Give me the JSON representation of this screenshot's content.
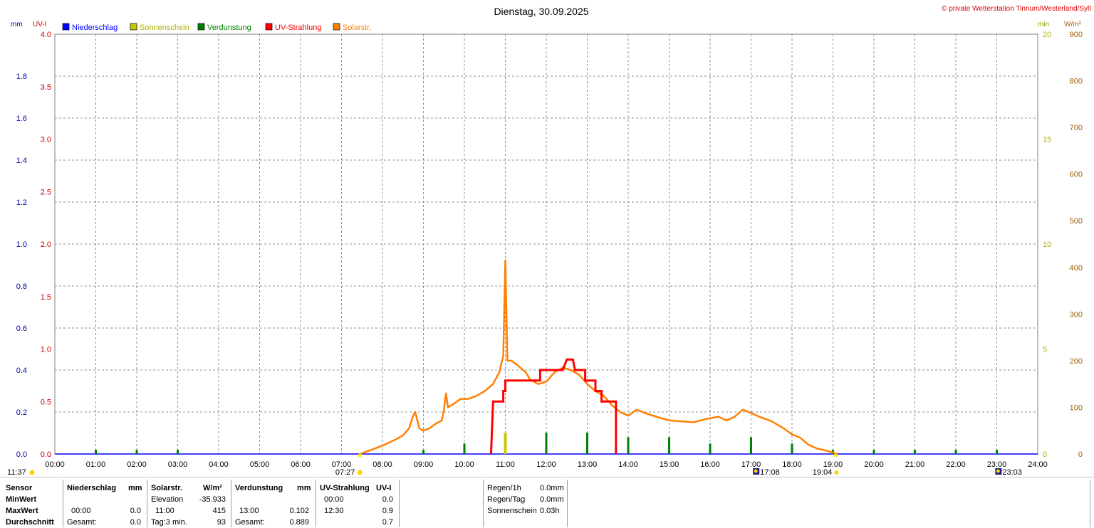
{
  "header": {
    "title": "Dienstag, 30.09.2025",
    "copyright": "© private Wetterstation Tinnum/Westerland/Sylt"
  },
  "axes": {
    "left1_unit": "mm",
    "left2_unit": "UV-I",
    "right1_unit": "min",
    "right2_unit": "W/m²",
    "mm_ticks": [
      "1.8",
      "1.6",
      "1.4",
      "1.2",
      "1.0",
      "0.8",
      "0.6",
      "0.4",
      "0.2",
      "0.0"
    ],
    "uv_ticks": [
      "4.0",
      "3.5",
      "3.0",
      "2.5",
      "2.0",
      "1.5",
      "1.0",
      "0.5",
      "0.0"
    ],
    "min_ticks": [
      "20",
      "15",
      "10",
      "5",
      "0"
    ],
    "wm2_ticks": [
      "900",
      "800",
      "700",
      "600",
      "500",
      "400",
      "300",
      "200",
      "100",
      "0"
    ],
    "x_ticks": [
      "00:00",
      "01:00",
      "02:00",
      "03:00",
      "04:00",
      "05:00",
      "06:00",
      "07:00",
      "08:00",
      "09:00",
      "10:00",
      "11:00",
      "12:00",
      "13:00",
      "14:00",
      "15:00",
      "16:00",
      "17:00",
      "18:00",
      "19:00",
      "20:00",
      "21:00",
      "22:00",
      "23:00",
      "24:00"
    ]
  },
  "legend": [
    {
      "label": "Niederschlag",
      "color": "#0000ff"
    },
    {
      "label": "Sonnenschein",
      "color": "#c8c800"
    },
    {
      "label": "Verdunstung",
      "color": "#008000"
    },
    {
      "label": "UV-Strahlung",
      "color": "#ff0000"
    },
    {
      "label": "Solarstr.",
      "color": "#ff8000"
    }
  ],
  "events": {
    "moonset": "11:37",
    "sunrise": "07:27",
    "moonrise_like": "17:08",
    "sunset": "19:04",
    "moon2": "23:03"
  },
  "chart_data": {
    "type": "line",
    "x_unit": "hour",
    "xlim": [
      0,
      24
    ],
    "series": [
      {
        "name": "Solarstr.",
        "axis": "W/m²",
        "ylim": [
          0,
          900
        ],
        "color": "#ff8000",
        "points": [
          [
            7.45,
            0
          ],
          [
            7.7,
            8
          ],
          [
            8.0,
            18
          ],
          [
            8.3,
            30
          ],
          [
            8.5,
            40
          ],
          [
            8.65,
            55
          ],
          [
            8.75,
            82
          ],
          [
            8.8,
            90
          ],
          [
            8.85,
            72
          ],
          [
            8.9,
            55
          ],
          [
            9.0,
            50
          ],
          [
            9.15,
            55
          ],
          [
            9.3,
            65
          ],
          [
            9.45,
            72
          ],
          [
            9.5,
            95
          ],
          [
            9.55,
            130
          ],
          [
            9.6,
            100
          ],
          [
            9.75,
            108
          ],
          [
            9.9,
            118
          ],
          [
            10.1,
            118
          ],
          [
            10.3,
            125
          ],
          [
            10.5,
            135
          ],
          [
            10.7,
            150
          ],
          [
            10.85,
            175
          ],
          [
            10.95,
            210
          ],
          [
            11.0,
            415
          ],
          [
            11.05,
            200
          ],
          [
            11.15,
            200
          ],
          [
            11.3,
            190
          ],
          [
            11.5,
            175
          ],
          [
            11.6,
            160
          ],
          [
            11.8,
            150
          ],
          [
            12.0,
            155
          ],
          [
            12.2,
            175
          ],
          [
            12.4,
            185
          ],
          [
            12.6,
            180
          ],
          [
            12.8,
            170
          ],
          [
            13.0,
            150
          ],
          [
            13.2,
            135
          ],
          [
            13.4,
            125
          ],
          [
            13.6,
            105
          ],
          [
            13.8,
            90
          ],
          [
            14.0,
            82
          ],
          [
            14.2,
            95
          ],
          [
            14.5,
            85
          ],
          [
            14.8,
            77
          ],
          [
            15.0,
            72
          ],
          [
            15.3,
            70
          ],
          [
            15.6,
            68
          ],
          [
            15.9,
            75
          ],
          [
            16.2,
            80
          ],
          [
            16.4,
            72
          ],
          [
            16.6,
            80
          ],
          [
            16.8,
            95
          ],
          [
            17.0,
            88
          ],
          [
            17.2,
            80
          ],
          [
            17.5,
            70
          ],
          [
            17.8,
            55
          ],
          [
            18.0,
            42
          ],
          [
            18.2,
            35
          ],
          [
            18.4,
            20
          ],
          [
            18.6,
            12
          ],
          [
            18.8,
            8
          ],
          [
            19.0,
            3
          ],
          [
            19.1,
            0
          ]
        ]
      },
      {
        "name": "UV-Strahlung",
        "axis": "UV-I",
        "ylim": [
          0,
          4
        ],
        "color": "#ff0000",
        "points": [
          [
            10.65,
            0
          ],
          [
            10.7,
            0.5
          ],
          [
            10.95,
            0.5
          ],
          [
            10.95,
            0.6
          ],
          [
            11.0,
            0.6
          ],
          [
            11.0,
            0.7
          ],
          [
            11.85,
            0.7
          ],
          [
            11.85,
            0.8
          ],
          [
            12.4,
            0.8
          ],
          [
            12.5,
            0.9
          ],
          [
            12.65,
            0.9
          ],
          [
            12.7,
            0.8
          ],
          [
            12.95,
            0.8
          ],
          [
            12.95,
            0.7
          ],
          [
            13.2,
            0.7
          ],
          [
            13.2,
            0.6
          ],
          [
            13.35,
            0.6
          ],
          [
            13.35,
            0.5
          ],
          [
            13.7,
            0.5
          ],
          [
            13.7,
            0.0
          ]
        ]
      },
      {
        "name": "Verdunstung",
        "axis": "mm",
        "ylim": [
          0,
          2.0
        ],
        "color": "#008000",
        "bars": [
          [
            1.0,
            0.02
          ],
          [
            2.0,
            0.02
          ],
          [
            3.0,
            0.02
          ],
          [
            9.0,
            0.02
          ],
          [
            10.0,
            0.05
          ],
          [
            11.0,
            0.08
          ],
          [
            12.0,
            0.102
          ],
          [
            13.0,
            0.102
          ],
          [
            14.0,
            0.08
          ],
          [
            15.0,
            0.08
          ],
          [
            16.0,
            0.05
          ],
          [
            17.0,
            0.08
          ],
          [
            18.0,
            0.05
          ],
          [
            19.0,
            0.02
          ],
          [
            20.0,
            0.02
          ],
          [
            21.0,
            0.02
          ],
          [
            22.0,
            0.02
          ],
          [
            23.0,
            0.02
          ]
        ]
      },
      {
        "name": "Sonnenschein",
        "axis": "min",
        "ylim": [
          0,
          20
        ],
        "color": "#c8c800",
        "bars": [
          [
            11.0,
            1
          ]
        ]
      }
    ]
  },
  "summary": {
    "sensor_label": "Sensor",
    "minwert_label": "MinWert",
    "maxwert_label": "MaxWert",
    "durchschnitt_label": "Durchschnitt",
    "nieder": {
      "title": "Niederschlag",
      "unit": "mm",
      "min_time": "",
      "min_val": "",
      "max_time": "00:00",
      "max_val": "0.0",
      "avg_label": "Gesamt:",
      "avg_val": "0.0"
    },
    "solar": {
      "title": "Solarstr.",
      "unit": "W/m²",
      "min_time": "Elevation",
      "min_val": "-35.933",
      "max_time": "11:00",
      "max_val": "415",
      "avg_label": "Tag:3 min.",
      "avg_val": "93"
    },
    "verd": {
      "title": "Verdunstung",
      "unit": "mm",
      "min_time": "",
      "min_val": "",
      "max_time": "13:00",
      "max_val": "0.102",
      "avg_label": "Gesamt:",
      "avg_val": "0.889"
    },
    "uv": {
      "title": "UV-Strahlung",
      "unit": "UV-I",
      "min_time": "00:00",
      "min_val": "0.0",
      "max_time": "12:30",
      "max_val": "0.9",
      "avg_val": "0.7"
    },
    "rain": {
      "r1_label": "Regen/1h",
      "r1_val": "0.0mm",
      "r2_label": "Regen/Tag",
      "r2_val": "0.0mm",
      "r3_label": "Sonnenschein",
      "r3_val": "0.03h"
    }
  }
}
